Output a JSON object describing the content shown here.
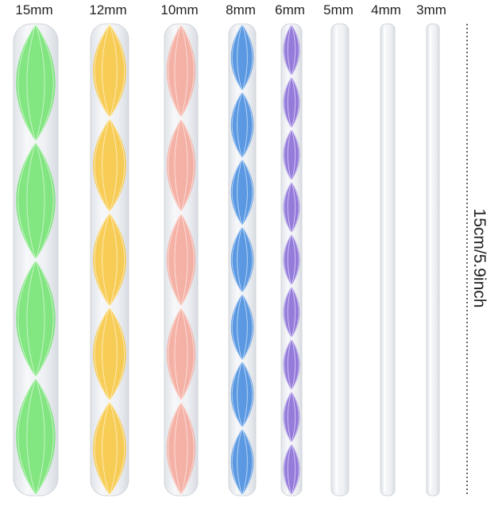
{
  "sizes": [
    "15mm",
    "12mm",
    "10mm",
    "8mm",
    "6mm",
    "5mm",
    "4mm",
    "3mm"
  ],
  "length": "15cm/5.9inch"
}
